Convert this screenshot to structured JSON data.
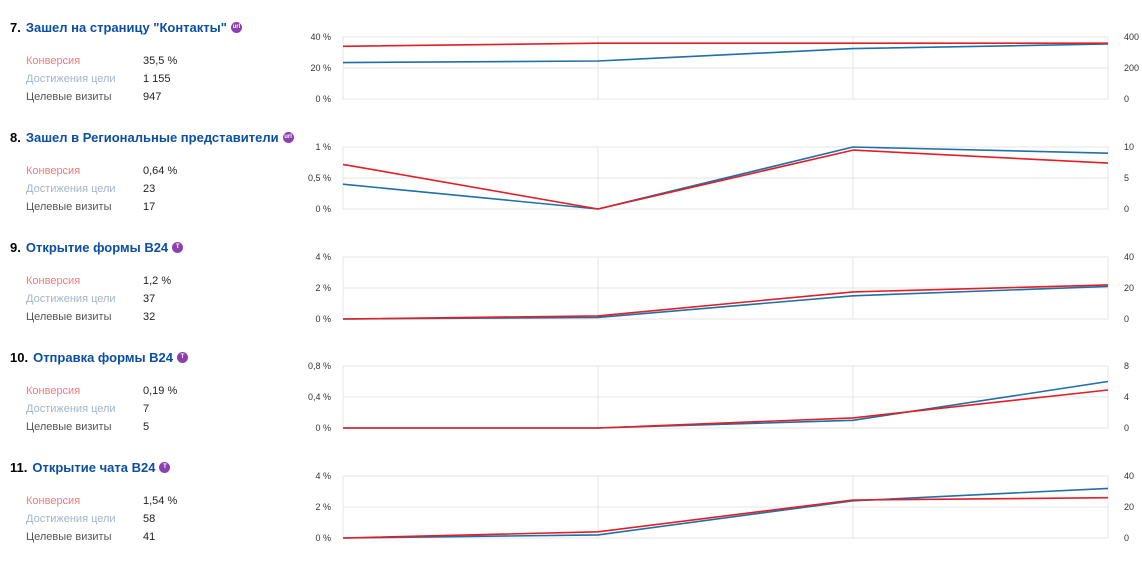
{
  "colors": {
    "conversion": "#e31e24",
    "visits": "#1f6fa8",
    "title": "#0b4ea2",
    "badge": "#8c3fb0",
    "grid": "#e5e5e5"
  },
  "labels": {
    "conversion": "Конверсия",
    "achievements": "Достижения цели",
    "visits": "Целевые визиты"
  },
  "goals": [
    {
      "number": "7.",
      "title": "Зашел на страницу \"Контакты\"",
      "badge_icon": "url-goal-icon",
      "badge_text": "url",
      "conversion": "35,5 %",
      "achievements": "1 155",
      "visits": "947"
    },
    {
      "number": "8.",
      "title": "Зашел в Региональные представители",
      "badge_icon": "url-goal-icon",
      "badge_text": "url",
      "conversion": "0,64 %",
      "achievements": "23",
      "visits": "17"
    },
    {
      "number": "9.",
      "title": "Открытие формы B24",
      "badge_icon": "js-event-goal-icon",
      "badge_text": "T",
      "conversion": "1,2 %",
      "achievements": "37",
      "visits": "32"
    },
    {
      "number": "10.",
      "title": "Отправка формы B24",
      "badge_icon": "js-event-goal-icon",
      "badge_text": "T",
      "conversion": "0,19 %",
      "achievements": "7",
      "visits": "5"
    },
    {
      "number": "11.",
      "title": "Открытие чата B24",
      "badge_icon": "js-event-goal-icon",
      "badge_text": "T",
      "conversion": "1,54 %",
      "achievements": "58",
      "visits": "41"
    }
  ],
  "chart_data": [
    {
      "type": "line",
      "grid": true,
      "x": [
        1,
        2,
        3,
        4
      ],
      "left_axis": {
        "ticks": [
          "40 %",
          "20 %",
          "0 %"
        ],
        "ylim": [
          0,
          40
        ]
      },
      "right_axis": {
        "ticks": [
          "400",
          "200",
          "0"
        ],
        "ylim": [
          0,
          400
        ]
      },
      "series": [
        {
          "axis": "left",
          "color": "#e31e24",
          "values": [
            34,
            36,
            36,
            36
          ]
        },
        {
          "axis": "right",
          "color": "#1f6fa8",
          "values": [
            235,
            245,
            325,
            355
          ]
        }
      ]
    },
    {
      "type": "line",
      "grid": true,
      "x": [
        1,
        2,
        3,
        4
      ],
      "left_axis": {
        "ticks": [
          "1 %",
          "0,5 %",
          "0 %"
        ],
        "ylim": [
          0,
          1
        ]
      },
      "right_axis": {
        "ticks": [
          "10",
          "5",
          "0"
        ],
        "ylim": [
          0,
          10
        ]
      },
      "series": [
        {
          "axis": "left",
          "color": "#e31e24",
          "values": [
            0.72,
            0.0,
            0.95,
            0.74
          ]
        },
        {
          "axis": "right",
          "color": "#1f6fa8",
          "values": [
            4.0,
            0.0,
            10.0,
            9.0
          ]
        }
      ]
    },
    {
      "type": "line",
      "grid": true,
      "x": [
        1,
        2,
        3,
        4
      ],
      "left_axis": {
        "ticks": [
          "4 %",
          "2 %",
          "0 %"
        ],
        "ylim": [
          0,
          4
        ]
      },
      "right_axis": {
        "ticks": [
          "40",
          "20",
          "0"
        ],
        "ylim": [
          0,
          40
        ]
      },
      "series": [
        {
          "axis": "left",
          "color": "#e31e24",
          "values": [
            0,
            0.2,
            1.75,
            2.2
          ]
        },
        {
          "axis": "right",
          "color": "#1f6fa8",
          "values": [
            0,
            1,
            15,
            21
          ]
        }
      ]
    },
    {
      "type": "line",
      "grid": true,
      "x": [
        1,
        2,
        3,
        4
      ],
      "left_axis": {
        "ticks": [
          "0,8 %",
          "0,4 %",
          "0 %"
        ],
        "ylim": [
          0,
          0.8
        ]
      },
      "right_axis": {
        "ticks": [
          "8",
          "4",
          "0"
        ],
        "ylim": [
          0,
          8
        ]
      },
      "series": [
        {
          "axis": "left",
          "color": "#e31e24",
          "values": [
            0,
            0,
            0.13,
            0.49
          ]
        },
        {
          "axis": "right",
          "color": "#1f6fa8",
          "values": [
            0,
            0,
            1,
            6
          ]
        }
      ]
    },
    {
      "type": "line",
      "grid": true,
      "x": [
        1,
        2,
        3,
        4
      ],
      "left_axis": {
        "ticks": [
          "4 %",
          "2 %",
          "0 %"
        ],
        "ylim": [
          0,
          4
        ]
      },
      "right_axis": {
        "ticks": [
          "40",
          "20",
          "0"
        ],
        "ylim": [
          0,
          40
        ]
      },
      "series": [
        {
          "axis": "left",
          "color": "#e31e24",
          "values": [
            0,
            0.4,
            2.45,
            2.6
          ]
        },
        {
          "axis": "right",
          "color": "#1f6fa8",
          "values": [
            0,
            2,
            24,
            32
          ]
        }
      ]
    }
  ]
}
